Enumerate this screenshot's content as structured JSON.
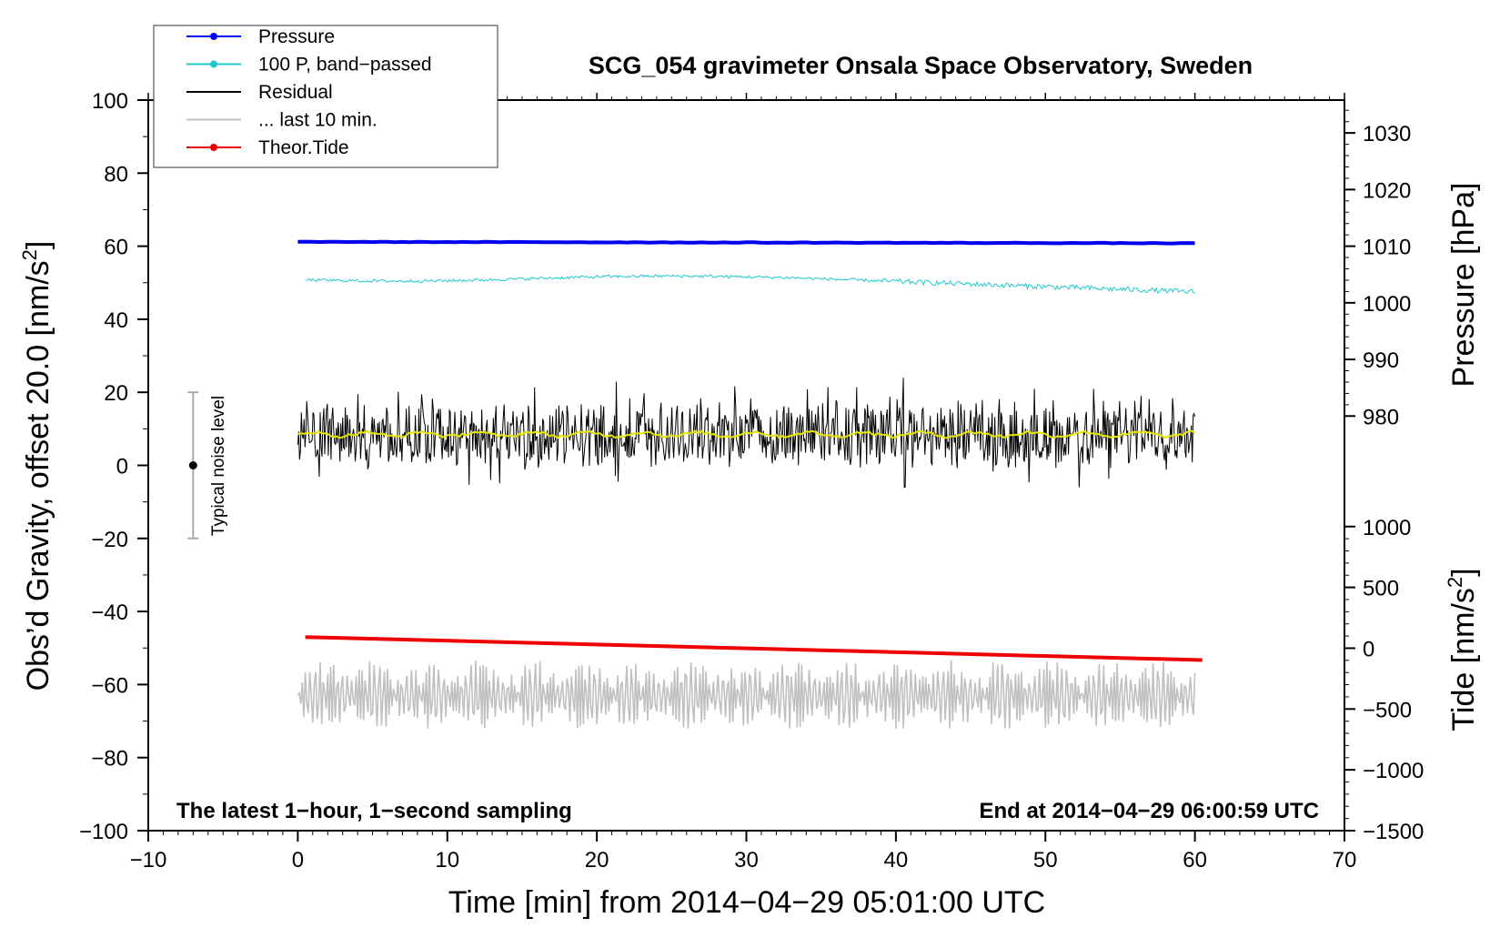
{
  "chart_data": {
    "type": "line",
    "title": "SCG_054 gravimeter Onsala Space Observatory, Sweden",
    "xlabel": "Time [min] from 2014−04−29 05:01:00 UTC",
    "ylabel_main": "Obs’d Gravity, offset 20.0 [nm/s",
    "ylabel_main_sup": "2",
    "ylabel_main_end": "]",
    "ylabel_pressure": "Pressure [hPa]",
    "ylabel_tide": "Tide [nm/s",
    "ylabel_tide_sup": "2",
    "ylabel_tide_end": "]",
    "xlim": [
      -10,
      70
    ],
    "ylim": [
      -100,
      100
    ],
    "x_ticks": [
      -10,
      0,
      10,
      20,
      30,
      40,
      50,
      60,
      70
    ],
    "x_tick_labels": [
      "−10",
      "0",
      "10",
      "20",
      "30",
      "40",
      "50",
      "60",
      "70"
    ],
    "y_ticks": [
      100,
      80,
      60,
      40,
      20,
      0,
      -20,
      -40,
      -60,
      -80,
      -100
    ],
    "y_tick_labels": [
      "100",
      "80",
      "60",
      "40",
      "20",
      "0",
      "−20",
      "−40",
      "−60",
      "−80",
      "−100"
    ],
    "pressure_axis": {
      "ticks": [
        1030,
        1020,
        1010,
        1000,
        990,
        980
      ],
      "tick_labels": [
        "1030",
        "1020",
        "1010",
        "1000",
        "990",
        "980"
      ],
      "value_at_gravity_60": 1010,
      "gravity_per_hpa": 1.55
    },
    "tide_axis": {
      "ticks": [
        1000,
        500,
        0,
        -500,
        -1000,
        -1500
      ],
      "tick_labels": [
        "1000",
        "500",
        "0",
        "−500",
        "−1000",
        "−1500"
      ],
      "value_at_gravity_minus100": -1500,
      "gravity_per_unit": 0.0333
    },
    "annotations": {
      "bottom_left": "The latest 1−hour, 1−second sampling",
      "bottom_right": "End at 2014−04−29 06:00:59 UTC",
      "noise_label": "Typical noise level"
    },
    "noise_bar": {
      "x": -7,
      "center": 0,
      "low": -20,
      "high": 20
    },
    "legend": {
      "position": "top-left",
      "entries": [
        {
          "label": "Pressure",
          "color": "#0000ee",
          "marker": true
        },
        {
          "label": "100 P, band−passed",
          "color": "#22c8cc",
          "marker": true
        },
        {
          "label": "Residual",
          "color": "#000000",
          "marker": false
        },
        {
          "label": "... last 10 min.",
          "color": "#c0c0c0",
          "marker": false
        },
        {
          "label": "Theor.Tide",
          "color": "#ee0000",
          "marker": true
        }
      ]
    },
    "series": [
      {
        "name": "Pressure",
        "color": "#0000ee",
        "x_range": [
          0,
          60
        ],
        "start": 61.2,
        "end": 60.8
      },
      {
        "name": "100 P, band−passed",
        "color": "#22c8cc",
        "x_range": [
          0.5,
          60
        ],
        "start": 50.8,
        "mid": 51.5,
        "end": 47.5
      },
      {
        "name": "Residual",
        "color": "#000000",
        "x_range": [
          0,
          60
        ],
        "mean": 8.5,
        "min": -6,
        "max": 24
      },
      {
        "name": "Residual smoothed",
        "color": "#e6e600",
        "x_range": [
          0,
          60
        ],
        "mean": 8.5
      },
      {
        "name": "... last 10 min.",
        "color": "#c0c0c0",
        "x_range": [
          0,
          60
        ],
        "mean": -63,
        "min": -72,
        "max": -52
      },
      {
        "name": "Theor.Tide",
        "color": "#ee0000",
        "x_range": [
          0.5,
          60.5
        ],
        "start": -47,
        "end": -53.3
      }
    ]
  }
}
